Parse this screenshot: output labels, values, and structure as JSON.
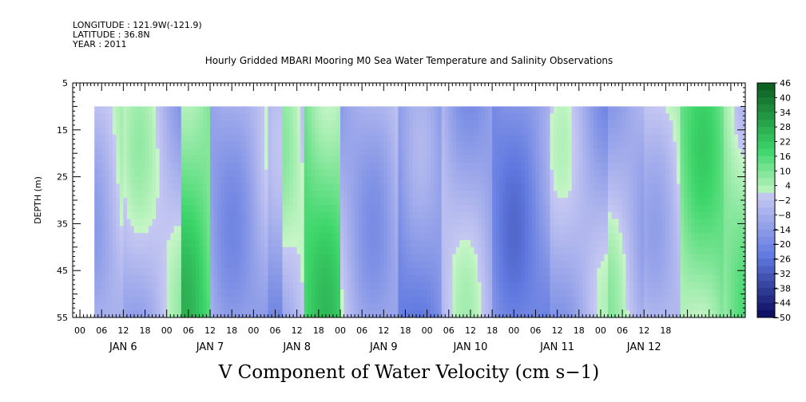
{
  "header": {
    "longitude": "LONGITUDE : 121.9W(-121.9)",
    "latitude": "LATITUDE : 36.8N",
    "year": "YEAR : 2011"
  },
  "chart_data": {
    "type": "heatmap",
    "title": "Hourly Gridded MBARI Mooring M0 Sea Water Temperature and Salinity Observations",
    "xlabel": "V Component of Water Velocity (cm s−1)",
    "ylabel": "DEPTH (m)",
    "ylim": [
      55,
      5
    ],
    "y_ticks": [
      5,
      15,
      25,
      35,
      45,
      55
    ],
    "data_depth_range": [
      10,
      55
    ],
    "x_hour_ticks": [
      "00",
      "06",
      "12",
      "18",
      "00",
      "06",
      "12",
      "18",
      "00",
      "06",
      "12",
      "18",
      "00",
      "06",
      "12",
      "18",
      "00",
      "06",
      "12",
      "18",
      "00",
      "06",
      "12",
      "18",
      "00",
      "06",
      "12",
      "18"
    ],
    "day_labels": [
      "JAN  6",
      "JAN  7",
      "JAN  8",
      "JAN  9",
      "JAN 10",
      "JAN 11",
      "JAN 12"
    ],
    "colorbar": {
      "labels": [
        "46",
        "40",
        "34",
        "28",
        "22",
        "16",
        "10",
        "4",
        "−2",
        "−8",
        "−14",
        "−20",
        "−26",
        "−32",
        "−38",
        "−44",
        "−50"
      ],
      "range": [
        -50,
        46
      ]
    },
    "dominant_field": [
      {
        "start_hour": 4,
        "end_hour": 12,
        "value": -2
      },
      {
        "start_hour": 12,
        "end_hour": 28,
        "value": -6
      },
      {
        "start_hour": 28,
        "end_hour": 36,
        "value": 14
      },
      {
        "start_hour": 36,
        "end_hour": 52,
        "value": -8
      },
      {
        "start_hour": 52,
        "end_hour": 56,
        "value": -14
      },
      {
        "start_hour": 56,
        "end_hour": 62,
        "value": -4
      },
      {
        "start_hour": 62,
        "end_hour": 72,
        "value": 12
      },
      {
        "start_hour": 72,
        "end_hour": 88,
        "value": -6
      },
      {
        "start_hour": 88,
        "end_hour": 100,
        "value": -18
      },
      {
        "start_hour": 100,
        "end_hour": 114,
        "value": -8
      },
      {
        "start_hour": 114,
        "end_hour": 130,
        "value": -16
      },
      {
        "start_hour": 130,
        "end_hour": 146,
        "value": -10
      },
      {
        "start_hour": 146,
        "end_hour": 156,
        "value": -4
      },
      {
        "start_hour": 156,
        "end_hour": 166,
        "value": 0
      },
      {
        "start_hour": 166,
        "end_hour": 178,
        "value": 8
      },
      {
        "start_hour": 178,
        "end_hour": 184,
        "value": 4
      }
    ],
    "colors": {
      "pos_light": "#c8f5c8",
      "pos_mid": "#3cd66a",
      "pos_dark": "#0a5a1e",
      "neg_light": "#c6c8f2",
      "neg_mid": "#6079e0",
      "neg_dark": "#0a0a5a"
    }
  }
}
